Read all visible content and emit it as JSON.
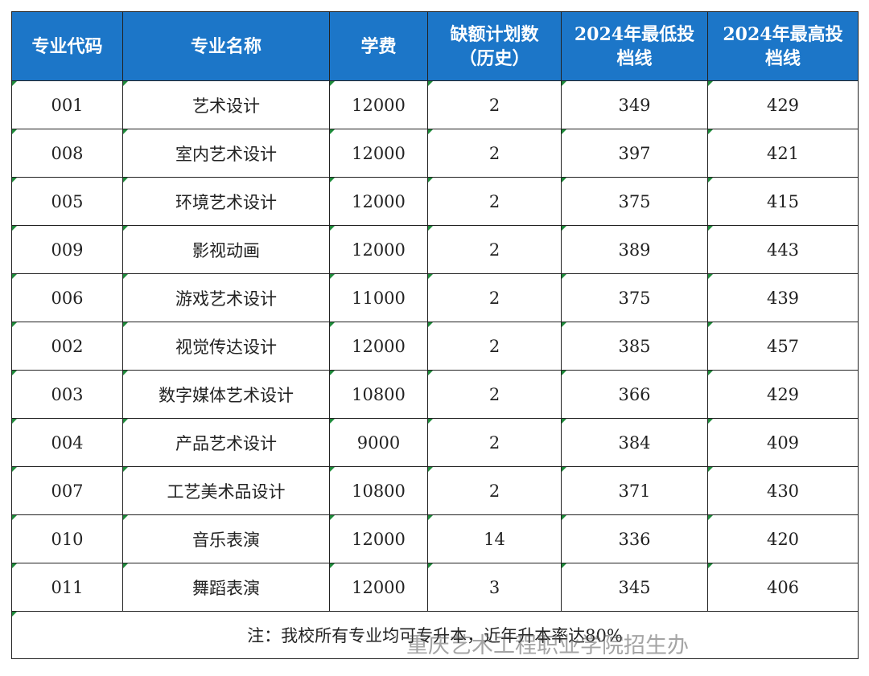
{
  "table": {
    "header": [
      [
        "专业代码"
      ],
      [
        "专业名称"
      ],
      [
        "学费"
      ],
      [
        "缺额计划数",
        "（历史）"
      ],
      [
        "2024年最低投",
        "档线"
      ],
      [
        "2024年最高投",
        "档线"
      ]
    ],
    "rows": [
      [
        "001",
        "艺术设计",
        "12000",
        "2",
        "349",
        "429"
      ],
      [
        "008",
        "室内艺术设计",
        "12000",
        "2",
        "397",
        "421"
      ],
      [
        "005",
        "环境艺术设计",
        "12000",
        "2",
        "375",
        "415"
      ],
      [
        "009",
        "影视动画",
        "12000",
        "2",
        "389",
        "443"
      ],
      [
        "006",
        "游戏艺术设计",
        "11000",
        "2",
        "375",
        "439"
      ],
      [
        "002",
        "视觉传达设计",
        "12000",
        "2",
        "385",
        "457"
      ],
      [
        "003",
        "数字媒体艺术设计",
        "10800",
        "2",
        "366",
        "429"
      ],
      [
        "004",
        "产品艺术设计",
        "9000",
        "2",
        "384",
        "409"
      ],
      [
        "007",
        "工艺美术品设计",
        "10800",
        "2",
        "371",
        "430"
      ],
      [
        "010",
        "音乐表演",
        "12000",
        "14",
        "336",
        "420"
      ],
      [
        "011",
        "舞蹈表演",
        "12000",
        "3",
        "345",
        "406"
      ]
    ],
    "note": "注：我校所有专业均可专升本，近年升本率达80%"
  },
  "watermark": "重庆艺术工程职业学院招生办"
}
